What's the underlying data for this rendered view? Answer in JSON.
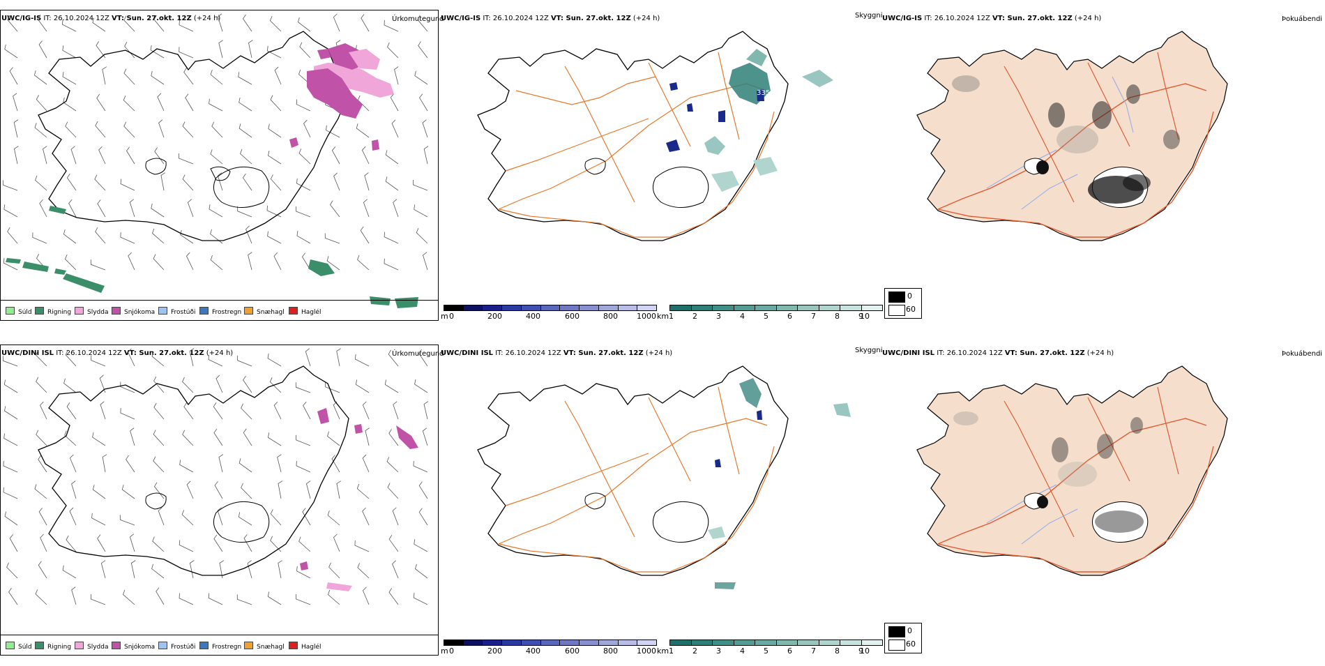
{
  "rows": [
    {
      "id": "igis",
      "precip_title": {
        "model": "UWC/IG-IS",
        "it": " IT: 26.10.2024 12Z ",
        "vt_label": "VT:",
        "vt": " Sun. 27.okt. 12Z",
        "lead": " (+24 h)"
      },
      "vis_title": {
        "model": "UWC/IG-IS",
        "it": " IT: 26.10.2024 12Z ",
        "vt_label": "VT:",
        "vt": " Sun. 27.okt. 12Z",
        "lead": " (+24 h)"
      },
      "panel_labels": {
        "precip": "Úrkomutegund",
        "vis": "Skyggni",
        "fog": "Þokuábendi"
      },
      "map_value_label": "335"
    },
    {
      "id": "dini",
      "precip_title": {
        "model": "UWC/DINI ISL",
        "it": " IT: 26.10.2024 12Z ",
        "vt_label": "VT:",
        "vt": " Sun. 27.okt. 12Z",
        "lead": " (+24 h)"
      },
      "vis_title": {
        "model": "UWC/DINI ISL",
        "it": " IT: 26.10.2024 12Z ",
        "vt_label": "VT:",
        "vt": " Sun. 27.okt. 12Z",
        "lead": " (+24 h)"
      },
      "panel_labels": {
        "precip": "Úrkomutegund",
        "vis": "Skyggni",
        "fog": "Þokuábendi"
      },
      "map_value_label": ""
    }
  ],
  "precip_legend": [
    {
      "label": "Súld",
      "color": "#90ee90"
    },
    {
      "label": "Rigning",
      "color": "#3a8f6a"
    },
    {
      "label": "Slydda",
      "color": "#f0a6d8"
    },
    {
      "label": "Snjókoma",
      "color": "#c052a8"
    },
    {
      "label": "Frostúði",
      "color": "#9cc4ee"
    },
    {
      "label": "Frostregn",
      "color": "#3a78c0"
    },
    {
      "label": "Snæhagl",
      "color": "#f0a030"
    },
    {
      "label": "Haglél",
      "color": "#e02020"
    }
  ],
  "elevation_bar": {
    "unit": "m",
    "ticks": [
      "0",
      "200",
      "400",
      "600",
      "800",
      "1000"
    ],
    "colors": [
      "#000000",
      "#101060",
      "#1a1f8a",
      "#2a3aa0",
      "#4050b0",
      "#5a68bc",
      "#7078c4",
      "#8890d0",
      "#a0a8da",
      "#b8bce6",
      "#d0d4f0"
    ]
  },
  "visibility_bar": {
    "unit": "km",
    "ticks": [
      "1",
      "2",
      "3",
      "4",
      "5",
      "6",
      "7",
      "8",
      "9",
      "10"
    ],
    "colors": [
      "#1f6f6a",
      "#2f7f78",
      "#3f8f86",
      "#559c94",
      "#6aaaa2",
      "#80b8b0",
      "#98c6bf",
      "#b0d4ce",
      "#c8e2dd",
      "#e4f1ee"
    ]
  },
  "fog_legend": {
    "high": "0",
    "low": "60"
  },
  "colors": {
    "land_fog": "#f5dfcc",
    "roads": "#e8782a",
    "roads_fog": "#e05a30",
    "rivers": "#8fa8f0",
    "rain": "#3a8f6a",
    "snow": "#c052a8",
    "sleet": "#f0a6d8",
    "vis_low": "#2f7f78",
    "vis_mid": "#80b8b0",
    "dark_blue": "#1a2a8a"
  }
}
